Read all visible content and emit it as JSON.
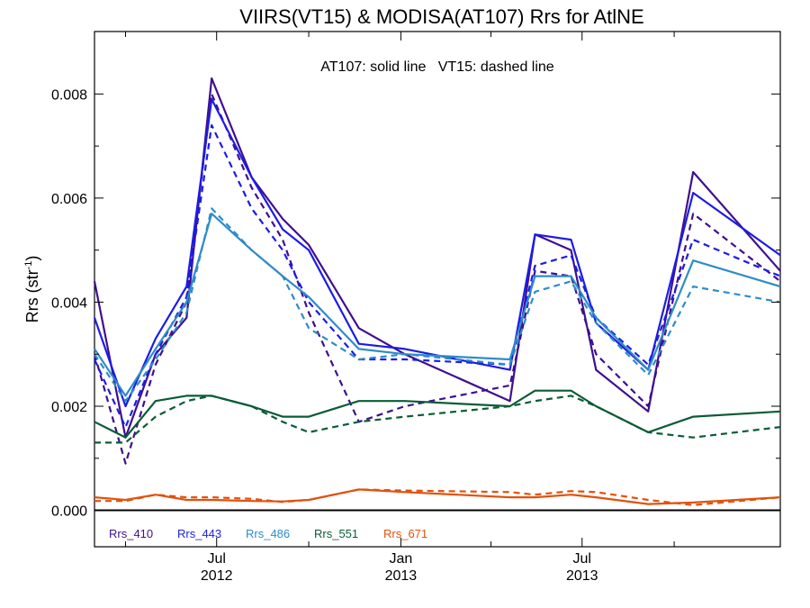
{
  "chart_data": {
    "type": "line",
    "title": "VIIRS(VT15) & MODISA(AT107)  Rrs for AtlNE",
    "annotation": "AT107: solid line   VT15: dashed line",
    "ylabel": "Rrs (str",
    "ylabel_sup": "-1",
    "ylabel_close": ")",
    "xlabel": "",
    "x_domain": [
      "2012-03-01",
      "2014-01-15"
    ],
    "ylim": [
      -0.0007,
      0.0092
    ],
    "y_ticks": [
      0.0,
      0.002,
      0.004,
      0.006,
      0.008
    ],
    "y_tick_labels": [
      "0.000",
      "0.002",
      "0.004",
      "0.006",
      "0.008"
    ],
    "x_major_ticks": [
      {
        "date": "2012-07-01",
        "month": "Jul",
        "year": "2012"
      },
      {
        "date": "2013-01-01",
        "month": "Jan",
        "year": "2013"
      },
      {
        "date": "2013-07-01",
        "month": "Jul",
        "year": "2013"
      }
    ],
    "x_minor_ticks": [
      "2012-04-01",
      "2012-10-01",
      "2013-04-01",
      "2013-10-01"
    ],
    "zero_line": true,
    "grid": false,
    "legend": "bottom-left",
    "x": [
      "2012-03-01",
      "2012-04-01",
      "2012-05-01",
      "2012-06-01",
      "2012-06-26",
      "2012-08-05",
      "2012-09-05",
      "2012-10-01",
      "2012-11-20",
      "2013-01-05",
      "2013-04-20",
      "2013-05-15",
      "2013-06-20",
      "2013-07-15",
      "2013-09-05",
      "2013-10-20",
      "2014-01-15"
    ],
    "series": [
      {
        "name": "Rrs_410",
        "sensor": "AT107",
        "style": "solid",
        "color": "#3f0f8f",
        "values": [
          0.0044,
          0.0014,
          0.003,
          0.0037,
          0.0083,
          0.0064,
          0.0056,
          0.0051,
          0.0035,
          0.003,
          0.0021,
          0.0053,
          0.005,
          0.0027,
          0.0019,
          0.0065,
          0.0046
        ]
      },
      {
        "name": "Rrs_410",
        "sensor": "VT15",
        "style": "dashed",
        "color": "#3f0f8f",
        "values": [
          0.003,
          0.0009,
          0.0028,
          0.004,
          0.008,
          0.0062,
          0.0052,
          0.0038,
          0.0017,
          0.002,
          0.0024,
          0.0046,
          0.0045,
          0.003,
          0.002,
          0.0057,
          0.0044
        ]
      },
      {
        "name": "Rrs_443",
        "sensor": "AT107",
        "style": "solid",
        "color": "#1c1ce6",
        "values": [
          0.0037,
          0.002,
          0.0033,
          0.0043,
          0.0079,
          0.0064,
          0.0054,
          0.005,
          0.0032,
          0.0031,
          0.0027,
          0.0053,
          0.0052,
          0.0036,
          0.0027,
          0.0061,
          0.0049
        ]
      },
      {
        "name": "Rrs_443",
        "sensor": "VT15",
        "style": "dashed",
        "color": "#1c1ce6",
        "values": [
          0.0029,
          0.0016,
          0.003,
          0.0041,
          0.0074,
          0.0058,
          0.005,
          0.004,
          0.0029,
          0.0029,
          0.0028,
          0.0047,
          0.0049,
          0.0037,
          0.0028,
          0.0052,
          0.0045
        ]
      },
      {
        "name": "Rrs_486",
        "sensor": "AT107",
        "style": "solid",
        "color": "#2f8cc8",
        "values": [
          0.0031,
          0.0022,
          0.0031,
          0.004,
          0.0057,
          0.005,
          0.0045,
          0.0041,
          0.0031,
          0.003,
          0.0029,
          0.0045,
          0.0045,
          0.0037,
          0.0027,
          0.0048,
          0.0043
        ]
      },
      {
        "name": "Rrs_486",
        "sensor": "VT15",
        "style": "dashed",
        "color": "#2f8cc8",
        "values": [
          0.003,
          0.0021,
          0.0029,
          0.0038,
          0.0058,
          0.005,
          0.0045,
          0.0035,
          0.0029,
          0.003,
          0.0028,
          0.0042,
          0.0044,
          0.0036,
          0.0026,
          0.0043,
          0.004
        ]
      },
      {
        "name": "Rrs_551",
        "sensor": "AT107",
        "style": "solid",
        "color": "#0a5c36",
        "values": [
          0.0017,
          0.0014,
          0.0021,
          0.0022,
          0.0022,
          0.002,
          0.0018,
          0.0018,
          0.0021,
          0.0021,
          0.002,
          0.0023,
          0.0023,
          0.002,
          0.0015,
          0.0018,
          0.0019
        ]
      },
      {
        "name": "Rrs_551",
        "sensor": "VT15",
        "style": "dashed",
        "color": "#0a5c36",
        "values": [
          0.0013,
          0.0013,
          0.0018,
          0.0021,
          0.0022,
          0.002,
          0.0017,
          0.0015,
          0.0017,
          0.0018,
          0.002,
          0.0021,
          0.0022,
          0.002,
          0.0015,
          0.0014,
          0.0016
        ]
      },
      {
        "name": "Rrs_671",
        "sensor": "AT107",
        "style": "solid",
        "color": "#e0520d",
        "values": [
          0.00025,
          0.0002,
          0.0003,
          0.0002,
          0.0002,
          0.00018,
          0.00017,
          0.0002,
          0.0004,
          0.00035,
          0.00025,
          0.00025,
          0.0003,
          0.00025,
          0.00012,
          0.00015,
          0.00025
        ]
      },
      {
        "name": "Rrs_671",
        "sensor": "VT15",
        "style": "dashed",
        "color": "#e0520d",
        "values": [
          0.00018,
          0.00018,
          0.0003,
          0.00025,
          0.00025,
          0.00022,
          0.00016,
          0.0002,
          0.0004,
          0.00038,
          0.00035,
          0.0003,
          0.00037,
          0.00035,
          0.0002,
          0.0001,
          0.00025
        ]
      }
    ],
    "legend_entries": [
      {
        "label": "Rrs_410",
        "color": "#3f0f8f"
      },
      {
        "label": "Rrs_443",
        "color": "#1c1ce6"
      },
      {
        "label": "Rrs_486",
        "color": "#2f8cc8"
      },
      {
        "label": "Rrs_551",
        "color": "#0a5c36"
      },
      {
        "label": "Rrs_671",
        "color": "#e0520d"
      }
    ]
  }
}
